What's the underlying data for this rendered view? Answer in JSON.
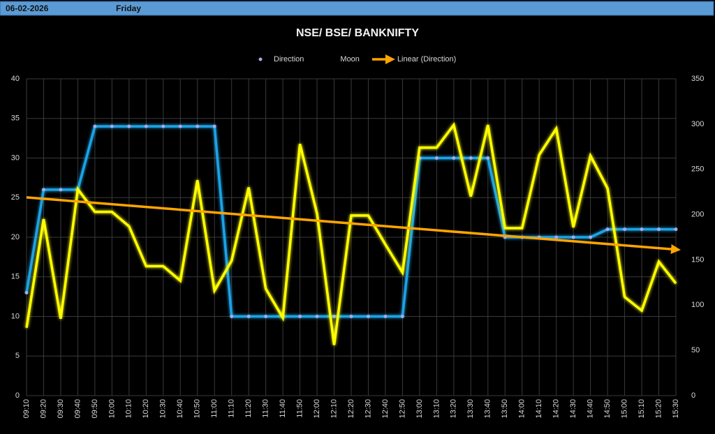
{
  "header": {
    "date": "06-02-2026",
    "day": "Friday"
  },
  "chart_data": {
    "type": "line",
    "title": "NSE/ BSE/ BANKNIFTY",
    "categories": [
      "09:10",
      "09:20",
      "09:30",
      "09:40",
      "09:50",
      "10:00",
      "10:10",
      "10:20",
      "10:30",
      "10:40",
      "10:50",
      "11:00",
      "11:10",
      "11:20",
      "11:30",
      "11:40",
      "11:50",
      "12:00",
      "12:10",
      "12:20",
      "12:30",
      "12:40",
      "12:50",
      "13:00",
      "13:10",
      "13:20",
      "13:30",
      "13:40",
      "13:50",
      "14:00",
      "14:10",
      "14:20",
      "14:30",
      "14:40",
      "14:50",
      "15:00",
      "15:10",
      "15:20",
      "15:30"
    ],
    "series": [
      {
        "name": "Direction",
        "color": "#1fa3e6",
        "values": [
          13,
          26,
          26,
          26,
          34,
          34,
          34,
          34,
          34,
          34,
          34,
          34,
          10,
          10,
          10,
          10,
          10,
          10,
          10,
          10,
          10,
          10,
          10,
          30,
          30,
          30,
          30,
          30,
          20,
          20,
          20,
          20,
          20,
          20,
          21,
          21,
          21,
          21,
          21
        ]
      },
      {
        "name": "Moon",
        "color": "#ffff00",
        "axis": "y2",
        "values": [
          75,
          195,
          85,
          228,
          203,
          203,
          187,
          143,
          143,
          127,
          238,
          116,
          149,
          230,
          118,
          86,
          278,
          201,
          56,
          199,
          199,
          167,
          136,
          274,
          274,
          299,
          220,
          299,
          185,
          185,
          266,
          295,
          186,
          265,
          229,
          109,
          94,
          148,
          124
        ]
      }
    ],
    "trendline": {
      "name": "Linear (Direction)",
      "color": "#ffa500"
    },
    "ylim": [
      0,
      40
    ],
    "yticks": [
      0,
      5,
      10,
      15,
      20,
      25,
      30,
      35,
      40
    ],
    "y2lim": [
      0,
      350
    ],
    "y2ticks": [
      0,
      50,
      100,
      150,
      200,
      250,
      300,
      350
    ],
    "grid": true,
    "legend": "top"
  }
}
